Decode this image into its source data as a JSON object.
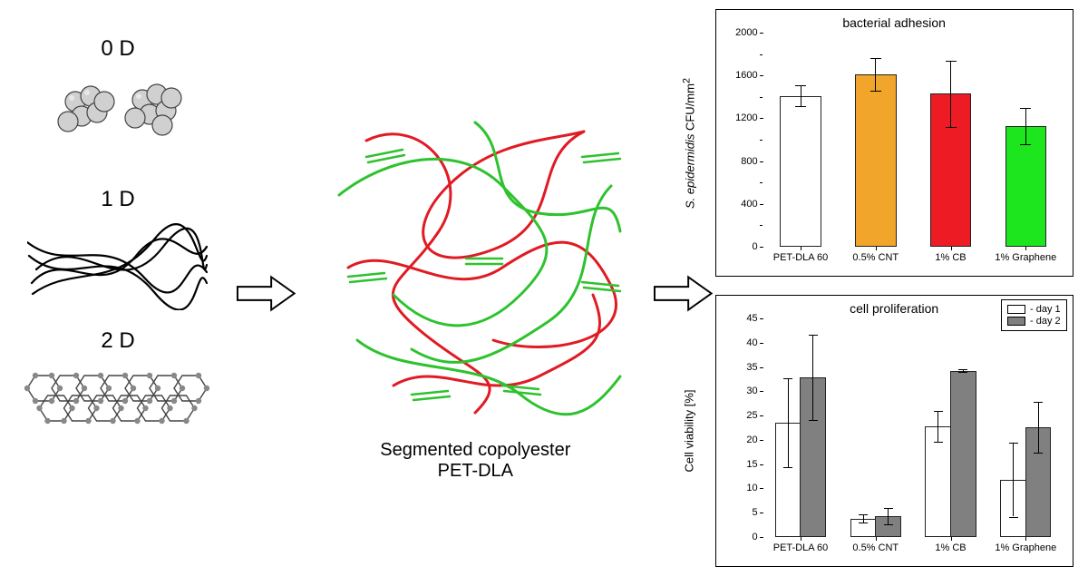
{
  "left": {
    "labels": [
      "0 D",
      "1 D",
      "2 D"
    ]
  },
  "middle": {
    "label_line1": "Segmented copolyester",
    "label_line2": "PET-DLA"
  },
  "chart1": {
    "type": "bar",
    "title": "bacterial adhesion",
    "ylabel": "S. epidermidis CFU/mm²",
    "ylabel_style": "italic-first",
    "ylim": [
      0,
      2000
    ],
    "ytick_step": 400,
    "yticks": [
      0,
      400,
      800,
      1200,
      1600,
      2000
    ],
    "categories": [
      "PET-DLA 60",
      "0.5% CNT",
      "1% CB",
      "1% Graphene"
    ],
    "values": [
      1410,
      1610,
      1430,
      1130
    ],
    "errors": [
      100,
      150,
      310,
      170
    ],
    "bar_colors": [
      "#ffffff",
      "#f1a52b",
      "#ed1c24",
      "#1ee61e"
    ],
    "bar_width": 0.55,
    "background_color": "#ffffff",
    "label_fontsize": 11,
    "title_fontsize": 14
  },
  "chart2": {
    "type": "grouped-bar",
    "title": "cell proliferation",
    "ylabel": "Cell viability [%]",
    "ylim": [
      0,
      45
    ],
    "ytick_step": 5,
    "yticks": [
      0,
      5,
      10,
      15,
      20,
      25,
      30,
      35,
      40,
      45
    ],
    "categories": [
      "PET-DLA 60",
      "0.5% CNT",
      "1% CB",
      "1% Graphene"
    ],
    "series": [
      {
        "label": "- day 1",
        "color": "#ffffff",
        "values": [
          23.5,
          3.8,
          22.8,
          11.8
        ],
        "errors": [
          9.2,
          0.8,
          3.2,
          7.6
        ]
      },
      {
        "label": "- day 2",
        "color": "#808080",
        "values": [
          32.8,
          4.3,
          34.2,
          22.6
        ],
        "errors": [
          8.8,
          1.6,
          0.3,
          5.2
        ]
      }
    ],
    "bar_width": 0.35,
    "legend_pos": "top-right",
    "background_color": "#ffffff",
    "label_fontsize": 11,
    "title_fontsize": 14
  },
  "colors": {
    "polymer_red": "#e01b24",
    "polymer_green": "#2ec22e",
    "sphere_fill": "#d0d0d0",
    "sphere_stroke": "#444444",
    "fiber_stroke": "#000000",
    "graphene_stroke": "#444444",
    "graphene_fill": "#b8b8b8"
  }
}
